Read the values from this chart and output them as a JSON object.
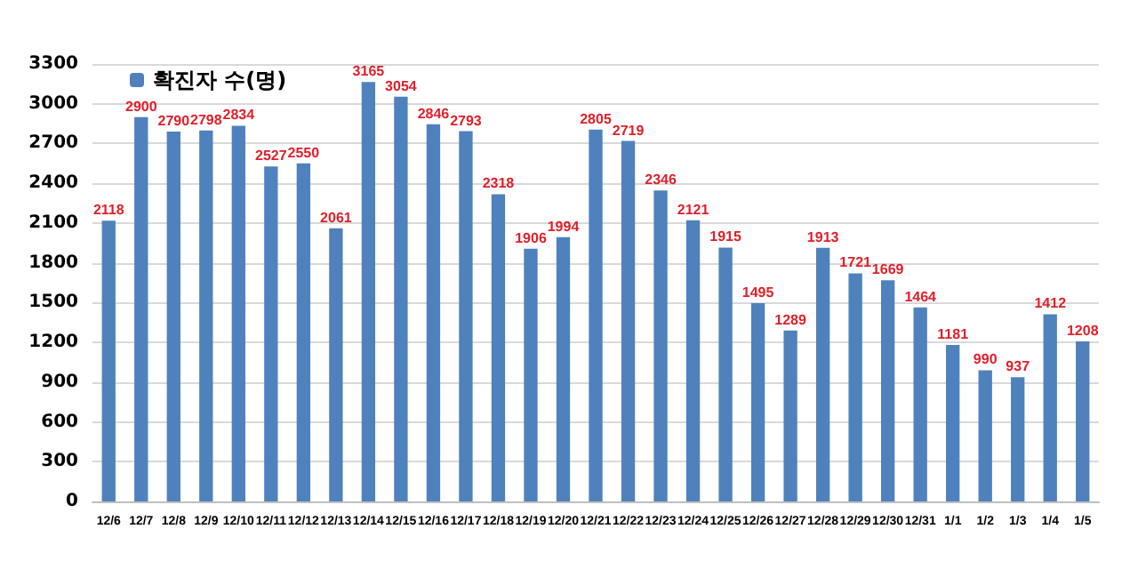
{
  "chart_data": {
    "type": "bar",
    "categories": [
      "12/6",
      "12/7",
      "12/8",
      "12/9",
      "12/10",
      "12/11",
      "12/12",
      "12/13",
      "12/14",
      "12/15",
      "12/16",
      "12/17",
      "12/18",
      "12/19",
      "12/20",
      "12/21",
      "12/22",
      "12/23",
      "12/24",
      "12/25",
      "12/26",
      "12/27",
      "12/28",
      "12/29",
      "12/30",
      "12/31",
      "1/1",
      "1/2",
      "1/3",
      "1/4",
      "1/5"
    ],
    "series": [
      {
        "name": "확진자 수(명)",
        "color": "#4f81bd",
        "values": [
          2118,
          2900,
          2790,
          2798,
          2834,
          2527,
          2550,
          2061,
          3165,
          3054,
          2846,
          2793,
          2318,
          1906,
          1994,
          2805,
          2719,
          2346,
          2121,
          1915,
          1495,
          1289,
          1913,
          1721,
          1669,
          1464,
          1181,
          990,
          937,
          1412,
          1208
        ]
      }
    ],
    "ylim": [
      0,
      3300
    ],
    "yticks": [
      0,
      300,
      600,
      900,
      1200,
      1500,
      1800,
      2100,
      2400,
      2700,
      3000,
      3300
    ],
    "grid": "y",
    "legend": "top left",
    "data_labels": true
  }
}
